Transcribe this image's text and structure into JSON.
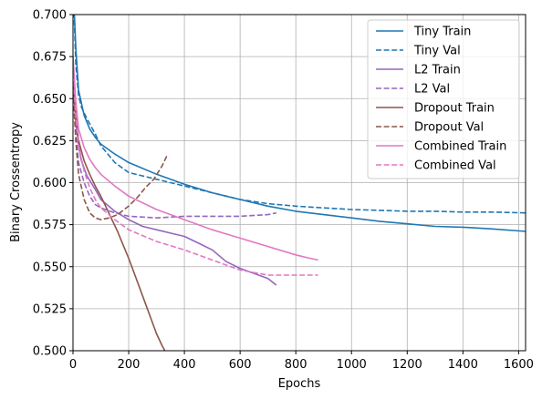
{
  "chart_data": {
    "type": "line",
    "xlabel": "Epochs",
    "ylabel": "Binary Crossentropy",
    "xlim": [
      0,
      1625
    ],
    "ylim": [
      0.5,
      0.7
    ],
    "xticks": [
      0,
      200,
      400,
      600,
      800,
      1000,
      1200,
      1400,
      1600
    ],
    "yticks": [
      0.5,
      0.525,
      0.55,
      0.575,
      0.6,
      0.625,
      0.65,
      0.675,
      0.7
    ],
    "xtick_labels": [
      "0",
      "200",
      "400",
      "600",
      "800",
      "1000",
      "1200",
      "1400",
      "1600"
    ],
    "ytick_labels": [
      "0.500",
      "0.525",
      "0.550",
      "0.575",
      "0.600",
      "0.625",
      "0.650",
      "0.675",
      "0.700"
    ],
    "grid": true,
    "legend_position": "top-right",
    "series": [
      {
        "name": "Tiny Train",
        "color": "#1f77b4",
        "dash": "solid",
        "x": [
          0,
          10,
          20,
          40,
          60,
          80,
          100,
          150,
          200,
          300,
          400,
          500,
          600,
          700,
          800,
          900,
          1000,
          1100,
          1200,
          1300,
          1400,
          1500,
          1625
        ],
        "y": [
          0.72,
          0.68,
          0.655,
          0.64,
          0.632,
          0.627,
          0.623,
          0.617,
          0.612,
          0.605,
          0.599,
          0.594,
          0.59,
          0.586,
          0.583,
          0.581,
          0.579,
          0.577,
          0.5755,
          0.574,
          0.5735,
          0.5725,
          0.571
        ]
      },
      {
        "name": "Tiny Val",
        "color": "#1f77b4",
        "dash": "dashed",
        "x": [
          0,
          10,
          20,
          30,
          50,
          80,
          100,
          150,
          200,
          300,
          400,
          500,
          600,
          700,
          800,
          900,
          1000,
          1100,
          1200,
          1300,
          1400,
          1500,
          1625
        ],
        "y": [
          0.72,
          0.67,
          0.652,
          0.645,
          0.638,
          0.629,
          0.622,
          0.612,
          0.606,
          0.602,
          0.598,
          0.594,
          0.59,
          0.5875,
          0.586,
          0.585,
          0.584,
          0.5835,
          0.583,
          0.583,
          0.5825,
          0.5825,
          0.582
        ]
      },
      {
        "name": "L2 Train",
        "color": "#9467bd",
        "dash": "solid",
        "x": [
          0,
          10,
          20,
          30,
          50,
          80,
          100,
          150,
          200,
          250,
          300,
          350,
          400,
          450,
          500,
          550,
          600,
          650,
          700,
          730
        ],
        "y": [
          0.66,
          0.635,
          0.622,
          0.613,
          0.604,
          0.596,
          0.59,
          0.583,
          0.578,
          0.574,
          0.572,
          0.57,
          0.568,
          0.564,
          0.56,
          0.553,
          0.549,
          0.546,
          0.543,
          0.539
        ]
      },
      {
        "name": "L2 Val",
        "color": "#9467bd",
        "dash": "dashed",
        "x": [
          0,
          10,
          20,
          40,
          60,
          80,
          100,
          150,
          200,
          300,
          400,
          500,
          600,
          700,
          730
        ],
        "y": [
          0.655,
          0.63,
          0.612,
          0.6,
          0.592,
          0.587,
          0.585,
          0.582,
          0.58,
          0.579,
          0.58,
          0.58,
          0.58,
          0.581,
          0.582
        ]
      },
      {
        "name": "Dropout Train",
        "color": "#8c564b",
        "dash": "solid",
        "x": [
          0,
          10,
          20,
          40,
          60,
          80,
          100,
          120,
          140,
          160,
          180,
          200,
          220,
          240,
          260,
          280,
          300,
          320,
          330
        ],
        "y": [
          0.66,
          0.64,
          0.625,
          0.613,
          0.605,
          0.598,
          0.592,
          0.585,
          0.578,
          0.571,
          0.563,
          0.555,
          0.546,
          0.537,
          0.528,
          0.519,
          0.51,
          0.503,
          0.5
        ]
      },
      {
        "name": "Dropout Val",
        "color": "#8c564b",
        "dash": "dashed",
        "x": [
          0,
          10,
          20,
          40,
          60,
          80,
          100,
          130,
          160,
          200,
          230,
          260,
          290,
          320,
          340
        ],
        "y": [
          0.655,
          0.625,
          0.605,
          0.59,
          0.582,
          0.579,
          0.578,
          0.579,
          0.581,
          0.586,
          0.591,
          0.597,
          0.602,
          0.61,
          0.617
        ]
      },
      {
        "name": "Combined Train",
        "color": "#e377c2",
        "dash": "solid",
        "x": [
          0,
          10,
          20,
          40,
          60,
          80,
          100,
          150,
          200,
          300,
          400,
          500,
          600,
          700,
          800,
          850,
          880
        ],
        "y": [
          0.675,
          0.648,
          0.632,
          0.621,
          0.614,
          0.609,
          0.605,
          0.598,
          0.592,
          0.584,
          0.578,
          0.572,
          0.567,
          0.562,
          0.557,
          0.555,
          0.554
        ]
      },
      {
        "name": "Combined Val",
        "color": "#e377c2",
        "dash": "dashed",
        "x": [
          0,
          10,
          20,
          40,
          60,
          80,
          100,
          150,
          200,
          300,
          400,
          500,
          600,
          700,
          800,
          880
        ],
        "y": [
          0.665,
          0.64,
          0.622,
          0.607,
          0.597,
          0.59,
          0.585,
          0.578,
          0.572,
          0.565,
          0.56,
          0.554,
          0.548,
          0.545,
          0.545,
          0.545
        ]
      }
    ]
  }
}
